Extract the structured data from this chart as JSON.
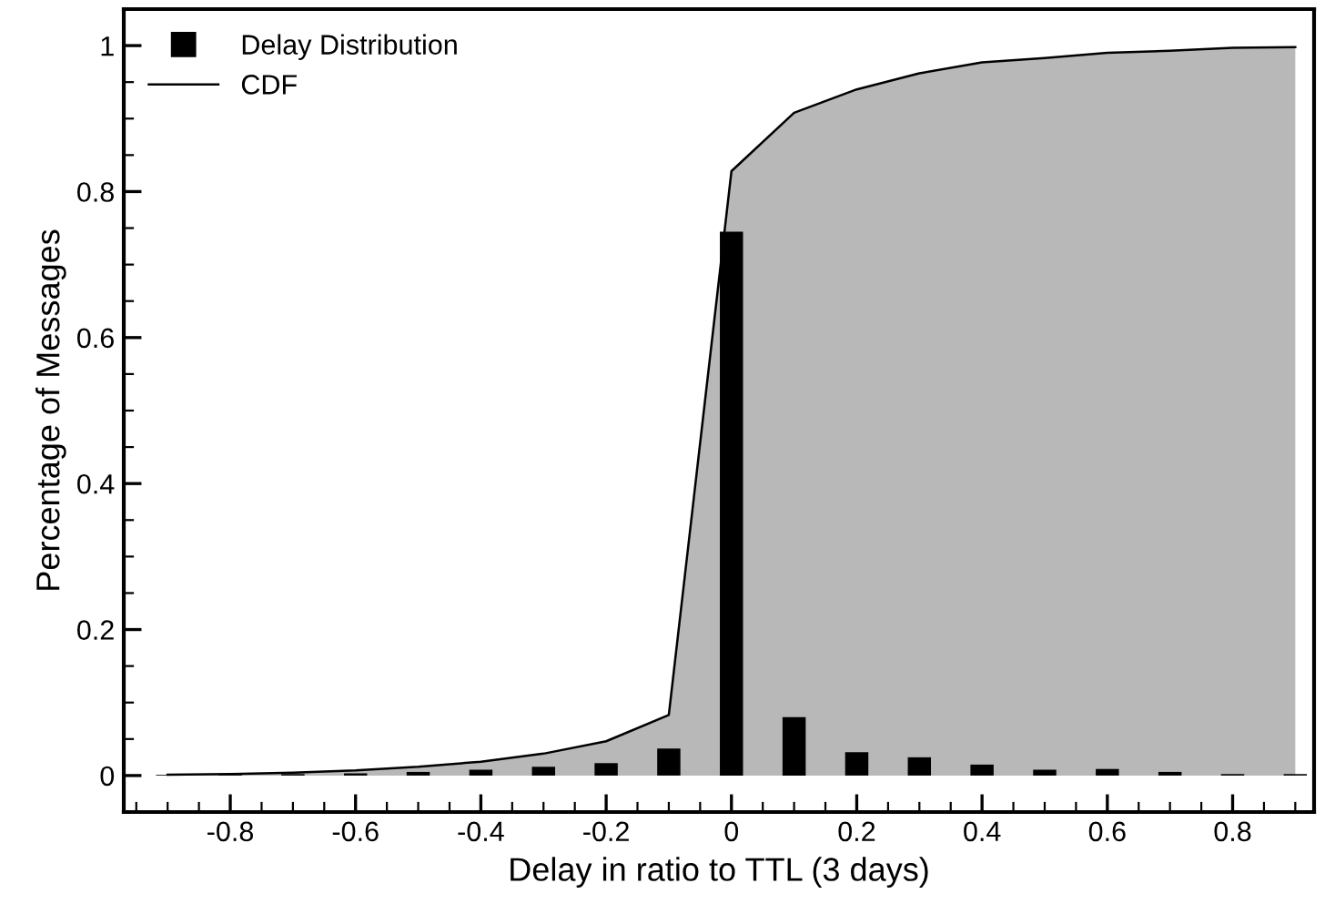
{
  "chart_data": {
    "type": "bar",
    "xlabel": "Delay in ratio to TTL (3 days)",
    "ylabel": "Percentage of Messages",
    "x": [
      -0.9,
      -0.8,
      -0.7,
      -0.6,
      -0.5,
      -0.4,
      -0.3,
      -0.2,
      -0.1,
      0,
      0.1,
      0.2,
      0.3,
      0.4,
      0.5,
      0.6,
      0.7,
      0.8,
      0.9
    ],
    "series": [
      {
        "name": "Delay Distribution",
        "color": "#000000",
        "values": [
          0.001,
          0.001,
          0.002,
          0.003,
          0.005,
          0.008,
          0.012,
          0.017,
          0.037,
          0.745,
          0.08,
          0.032,
          0.025,
          0.015,
          0.008,
          0.009,
          0.005,
          0.002,
          0.002
        ]
      },
      {
        "name": "CDF",
        "type": "area",
        "color": "#b8b8b8",
        "values": [
          0.001,
          0.002,
          0.004,
          0.007,
          0.012,
          0.019,
          0.03,
          0.047,
          0.083,
          0.828,
          0.908,
          0.94,
          0.962,
          0.977,
          0.983,
          0.99,
          0.993,
          0.997,
          0.998
        ]
      }
    ],
    "xlim": [
      -0.97,
      0.93
    ],
    "ylim": [
      -0.05,
      1.05
    ],
    "xticks": [
      -0.8,
      -0.6,
      -0.4,
      -0.2,
      0,
      0.2,
      0.4,
      0.6,
      0.8
    ],
    "yticks": [
      0,
      0.2,
      0.4,
      0.6,
      0.8,
      1
    ],
    "grid": false,
    "legend": "top left"
  }
}
